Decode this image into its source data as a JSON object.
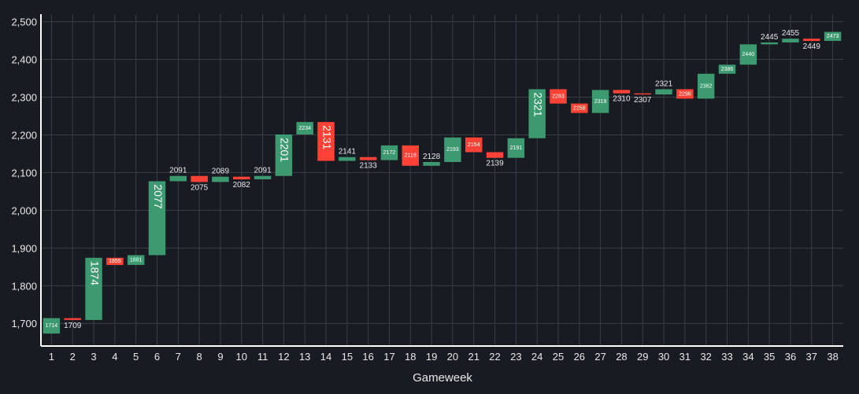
{
  "chart_data": {
    "type": "waterfall",
    "xlabel": "Gameweek",
    "ylabel": "",
    "ylim": [
      1640,
      2520
    ],
    "yticks": [
      1700,
      1800,
      1900,
      2000,
      2100,
      2200,
      2300,
      2400,
      2500
    ],
    "ytick_labels": [
      "1,700",
      "1,800",
      "1,900",
      "2,000",
      "2,100",
      "2,200",
      "2,300",
      "2,400",
      "2,500"
    ],
    "categories": [
      "1",
      "2",
      "3",
      "4",
      "5",
      "6",
      "7",
      "8",
      "9",
      "10",
      "11",
      "12",
      "13",
      "14",
      "15",
      "16",
      "17",
      "18",
      "19",
      "20",
      "21",
      "22",
      "23",
      "24",
      "25",
      "26",
      "27",
      "28",
      "29",
      "30",
      "31",
      "32",
      "33",
      "34",
      "35",
      "36",
      "37",
      "38"
    ],
    "start_value": 1673,
    "values": [
      1714,
      1709,
      1874,
      1855,
      1881,
      2077,
      2091,
      2075,
      2089,
      2082,
      2091,
      2201,
      2234,
      2131,
      2141,
      2133,
      2172,
      2118,
      2128,
      2193,
      2154,
      2139,
      2191,
      2321,
      2283,
      2258,
      2319,
      2310,
      2307,
      2321,
      2296,
      2362,
      2386,
      2440,
      2445,
      2455,
      2449,
      2473
    ],
    "grid": true,
    "legend": "none",
    "colors": {
      "increase": "#3d9970",
      "decrease": "#ff4136",
      "background": "#181b22",
      "grid": "#3a3e47",
      "axis_line": "#ffffff",
      "text": "#e8e8e8"
    }
  }
}
